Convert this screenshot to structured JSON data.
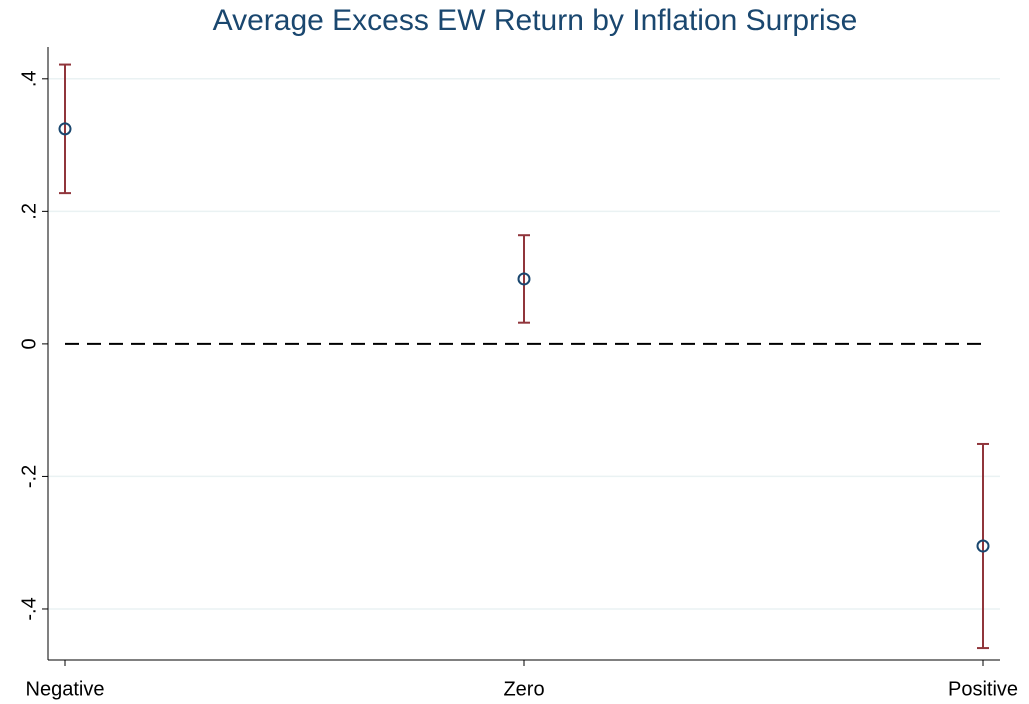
{
  "chart_data": {
    "type": "errorbar",
    "title": "Average Excess EW Return by Inflation Surprise",
    "categories": [
      "Negative",
      "Zero",
      "Positive"
    ],
    "values": [
      0.3245,
      0.098,
      -0.305
    ],
    "errors": [
      0.097,
      0.066,
      0.154
    ],
    "marker_color": "#1a476f",
    "error_color": "#90353b",
    "ylim": [
      -0.477,
      0.448
    ],
    "yticks": [
      {
        "value": -0.4,
        "label": "-.4"
      },
      {
        "value": -0.2,
        "label": "-.2"
      },
      0,
      {
        "value": 0.2,
        "label": ".2"
      },
      {
        "value": 0.4,
        "label": ".4"
      }
    ],
    "grid": true,
    "hline": 0
  }
}
